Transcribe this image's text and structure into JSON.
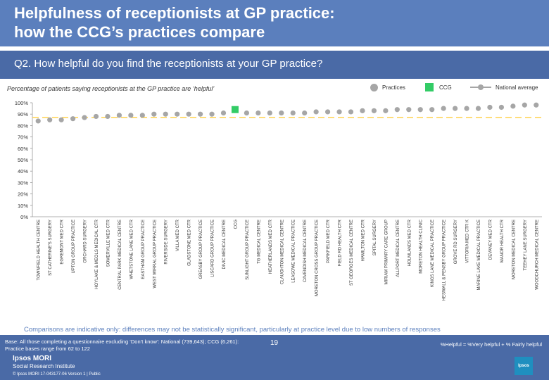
{
  "header": {
    "title_line1": "Helpfulness of receptionists at GP practice:",
    "title_line2": "how the CCG’s practices compare"
  },
  "question": "Q2. How helpful do you find the receptionists at your GP practice?",
  "subtitle": "Percentage of patients saying receptionists at the GP practice are ‘helpful’",
  "legend": {
    "practices": "Practices",
    "ccg": "CCG",
    "national": "National average"
  },
  "colors": {
    "practice": "#a6a6a6",
    "ccg": "#33cc66",
    "national": "#ffd24d",
    "title_band": "#5b7fbd",
    "footer_band": "#4a6aa6"
  },
  "chart_data": {
    "type": "bar",
    "title": "Percentage of patients saying receptionists at the GP practice are ‘helpful’",
    "ylim": [
      0,
      100
    ],
    "yticks": [
      "0%",
      "10%",
      "20%",
      "30%",
      "40%",
      "50%",
      "60%",
      "70%",
      "80%",
      "90%",
      "100%"
    ],
    "national_average": 87,
    "ccg_index": 17,
    "categories": [
      "TOWNFIELD HEALTH CENTRE",
      "ST CATHERINE'S SURGERY",
      "EGREMONT MED CTR",
      "UPTON GROUP PRACTICE",
      "ORCHARD SURGERY",
      "HOYLAKE & MEOLS MEDICAL CTR",
      "SOMERVILLE MED CTR",
      "CENTRAL PARK MEDICAL CENTRE",
      "WHETSTONE LANE MED CTR",
      "EASTHAM GROUP PRACTICE",
      "WEST WIRRAL GROUP PRACTICE",
      "RIVERSIDE SURGERY",
      "VILLA MED CTR",
      "GLADSTONE MED CTR",
      "GREASBY GROUP PRACTICE",
      "LISCARD GROUP PRACTICE",
      "DIVIC MEDICAL CENTRE",
      "CCG",
      "SUNLIGHT GROUP PRACTICE",
      "TG MEDICAL CENTRE",
      "HEATHERLANDS MED CTR",
      "CLAUGHTON MEDICAL CENTRE",
      "LEASOWE MEDICAL PRACTICE",
      "CAVENDISH MEDICAL CENTRE",
      "MORETON CROSS GROUP PRACTICE",
      "PARKFIELD MED CTR",
      "FIELD RD HEALTH CTR",
      "ST GEORGES MEDICAL CENTRE",
      "HAMILTON MED CTR",
      "SPITAL SURGERY",
      "MIRIAM PRIMARY CARE GROUP",
      "ALLPORT MEDICAL CENTRE",
      "HOLMLANDS MED CTR",
      "MORETON HEALTH CLINIC",
      "KINGS LANE MEDICAL PRACTICE",
      "HESWALL & PENSBY GROUP PRACTICE",
      "GROVE RD SURGERY",
      "VITTORIA MED CTR K",
      "MARINE LAKE MEDICAL PRACTICE",
      "DEVANEY MED CTR",
      "MANOR HEALTH CTR",
      "MORETON MEDICAL CENTRE",
      "TEEHEY LANE SURGERY",
      "WOODCHURCH MEDICAL CENTRE"
    ],
    "values": [
      84,
      85,
      85,
      86,
      87,
      88,
      88,
      89,
      89,
      89,
      90,
      90,
      90,
      90,
      90,
      90,
      91,
      94,
      91,
      91,
      91,
      91,
      91,
      91,
      92,
      92,
      92,
      92,
      93,
      93,
      93,
      94,
      94,
      94,
      94,
      95,
      95,
      95,
      95,
      96,
      96,
      97,
      98,
      98
    ]
  },
  "footnote": "Comparisons are indicative only: differences may not be statistically significant, particularly at practice level due to low numbers of responses",
  "footer": {
    "base_line1": "Base: All those completing a questionnaire excluding ‘Don’t know’: National (739,643); CCG (6,261):",
    "base_line2": "Practice bases range from 62 to 122",
    "helpful_def": "%Helpful = %Very helpful + % Fairly helpful",
    "page_number": "19",
    "brand_name": "Ipsos MORI",
    "brand_sub": "Social Research Institute",
    "copyright": "© Ipsos MORI     17-043177-06 Version 1 | Public",
    "logo_text": "Ipsos"
  }
}
